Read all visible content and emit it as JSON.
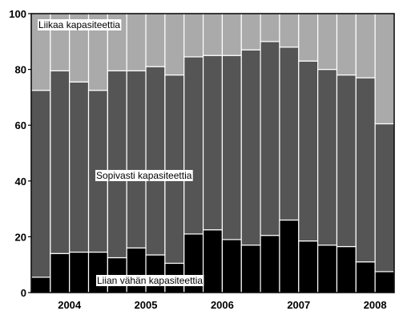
{
  "chart_data": {
    "type": "bar",
    "stacked": true,
    "ylim": [
      0,
      100
    ],
    "yticks": [
      0,
      20,
      40,
      60,
      80,
      100
    ],
    "xtick_labels": [
      "2004",
      "2005",
      "2006",
      "2007",
      "2008"
    ],
    "grid": false,
    "series": [
      {
        "key": "low",
        "values": [
          5.5,
          14,
          14.5,
          14.5,
          12.5,
          16,
          13.5,
          10.5,
          21,
          22.5,
          19,
          17,
          20.5,
          26,
          18.5,
          17,
          16.5,
          11,
          7.5
        ],
        "color": "#000000"
      },
      {
        "key": "mid",
        "values": [
          67,
          65.5,
          61,
          58,
          67,
          63.5,
          67.5,
          67.5,
          63.5,
          62.5,
          66,
          70,
          69.5,
          62,
          64.5,
          63,
          61.5,
          66,
          53
        ],
        "color": "#555555"
      },
      {
        "key": "high",
        "values": [
          27.5,
          20.5,
          24.5,
          27.5,
          20.5,
          20.5,
          19,
          22,
          15.5,
          15,
          15,
          13,
          10,
          12,
          17,
          20,
          22,
          23,
          39.5
        ],
        "color": "#aaaaaa"
      }
    ],
    "annotations": [
      {
        "key": "high",
        "text": "Liikaa kapasiteettia"
      },
      {
        "key": "mid",
        "text": "Sopivasti kapasiteettia"
      },
      {
        "key": "low",
        "text": "Liian vähän kapasiteettia"
      }
    ]
  }
}
